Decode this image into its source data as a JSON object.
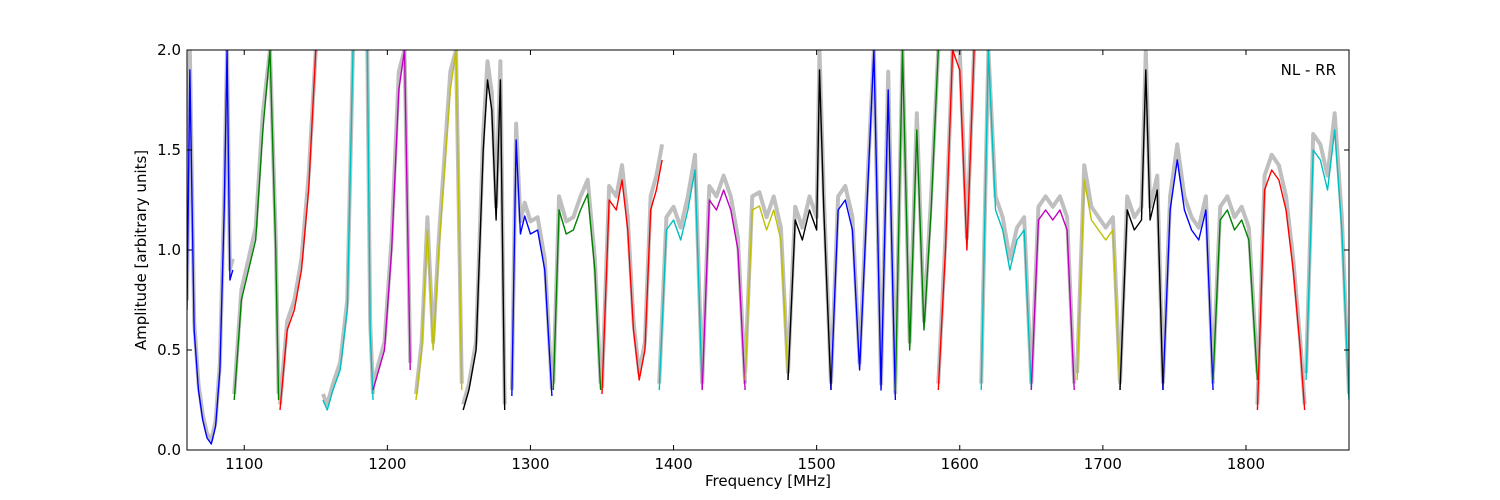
{
  "chart_data": {
    "type": "line",
    "title": "",
    "xlabel": "Frequency [MHz]",
    "ylabel": "Amplitude [arbitrary units]",
    "annotation": "NL - RR",
    "xlim": [
      1060,
      1872
    ],
    "ylim": [
      0.0,
      2.0
    ],
    "x_ticks": [
      1100,
      1200,
      1300,
      1400,
      1500,
      1600,
      1700,
      1800
    ],
    "x_tick_labels": [
      "1100",
      "1200",
      "1300",
      "1400",
      "1500",
      "1600",
      "1700",
      "1800"
    ],
    "y_ticks": [
      0.0,
      0.5,
      1.0,
      1.5,
      2.0
    ],
    "y_tick_labels": [
      "0.0",
      "0.5",
      "1.0",
      "1.5",
      "2.0"
    ],
    "grid": false,
    "background_series": {
      "color": "#bfbfbf",
      "description": "gray envelope"
    },
    "series": [
      {
        "color": "#0000ff",
        "x": [
          1060,
          1062,
          1065,
          1068,
          1071,
          1074,
          1077,
          1080,
          1083,
          1086,
          1088,
          1090,
          1092
        ],
        "y": [
          0.7,
          1.9,
          0.6,
          0.3,
          0.15,
          0.06,
          0.03,
          0.12,
          0.4,
          1.2,
          2.0,
          0.85,
          0.9
        ]
      },
      {
        "color": "#008000",
        "x": [
          1093,
          1098,
          1103,
          1108,
          1113,
          1118,
          1122,
          1124
        ],
        "y": [
          0.25,
          0.75,
          0.9,
          1.05,
          1.6,
          2.0,
          1.0,
          0.25
        ]
      },
      {
        "color": "#ff0000",
        "x": [
          1125,
          1130,
          1135,
          1140,
          1145,
          1150
        ],
        "y": [
          0.2,
          0.6,
          0.7,
          0.9,
          1.3,
          2.0
        ]
      },
      {
        "color": "#00bfbf",
        "x": [
          1155,
          1158,
          1162,
          1167,
          1172,
          1176
        ],
        "y": [
          0.25,
          0.2,
          0.3,
          0.4,
          0.7,
          2.0
        ]
      },
      {
        "color": "#00bfbf",
        "x": [
          1186,
          1188,
          1190
        ],
        "y": [
          2.0,
          0.6,
          0.25
        ]
      },
      {
        "color": "#bf00bf",
        "x": [
          1190,
          1194,
          1198,
          1203,
          1208,
          1212,
          1216
        ],
        "y": [
          0.3,
          0.4,
          0.5,
          1.0,
          1.8,
          2.0,
          0.4
        ]
      },
      {
        "color": "#bfbf00",
        "x": [
          1220,
          1224,
          1228,
          1232,
          1236,
          1240,
          1244,
          1248,
          1252
        ],
        "y": [
          0.25,
          0.5,
          1.1,
          0.5,
          1.0,
          1.4,
          1.8,
          2.0,
          0.3
        ]
      },
      {
        "color": "#000000",
        "x": [
          1253,
          1257,
          1262,
          1267,
          1270,
          1273,
          1276,
          1279,
          1282
        ],
        "y": [
          0.2,
          0.3,
          0.5,
          1.5,
          1.85,
          1.7,
          1.15,
          1.85,
          0.2
        ]
      },
      {
        "color": "#0000ff",
        "x": [
          1287,
          1290,
          1293,
          1296,
          1300,
          1305,
          1310,
          1315
        ],
        "y": [
          0.27,
          1.55,
          1.08,
          1.17,
          1.08,
          1.1,
          0.9,
          0.27
        ]
      },
      {
        "color": "#008000",
        "x": [
          1316,
          1320,
          1325,
          1330,
          1335,
          1340,
          1345,
          1349
        ],
        "y": [
          0.3,
          1.2,
          1.08,
          1.1,
          1.2,
          1.28,
          0.9,
          0.3
        ]
      },
      {
        "color": "#ff0000",
        "x": [
          1350,
          1355,
          1360,
          1364,
          1368,
          1372,
          1376,
          1380,
          1384,
          1388,
          1392
        ],
        "y": [
          0.28,
          1.25,
          1.2,
          1.35,
          1.1,
          0.6,
          0.35,
          0.5,
          1.2,
          1.3,
          1.45
        ]
      },
      {
        "color": "#00bfbf",
        "x": [
          1390,
          1395,
          1400,
          1405,
          1410,
          1415,
          1420
        ],
        "y": [
          0.3,
          1.1,
          1.15,
          1.05,
          1.2,
          1.4,
          0.3
        ]
      },
      {
        "color": "#bf00bf",
        "x": [
          1420,
          1425,
          1430,
          1435,
          1440,
          1445,
          1450
        ],
        "y": [
          0.3,
          1.25,
          1.2,
          1.3,
          1.2,
          1.0,
          0.3
        ]
      },
      {
        "color": "#bfbf00",
        "x": [
          1450,
          1455,
          1460,
          1465,
          1470,
          1475,
          1480
        ],
        "y": [
          0.35,
          1.2,
          1.22,
          1.1,
          1.2,
          1.05,
          0.35
        ]
      },
      {
        "color": "#000000",
        "x": [
          1480,
          1485,
          1490,
          1495,
          1500,
          1502,
          1505,
          1510
        ],
        "y": [
          0.35,
          1.15,
          1.05,
          1.2,
          1.1,
          1.9,
          1.2,
          0.3
        ]
      },
      {
        "color": "#0000ff",
        "x": [
          1510,
          1515,
          1520,
          1525,
          1530,
          1535,
          1540,
          1545,
          1550,
          1555
        ],
        "y": [
          0.3,
          1.2,
          1.25,
          1.1,
          0.4,
          1.2,
          2.0,
          0.3,
          1.8,
          0.25
        ]
      },
      {
        "color": "#008000",
        "x": [
          1555,
          1560,
          1565,
          1570,
          1575,
          1580,
          1585
        ],
        "y": [
          0.3,
          2.0,
          0.5,
          1.6,
          0.6,
          1.2,
          2.0
        ]
      },
      {
        "color": "#ff0000",
        "x": [
          1585,
          1590,
          1595,
          1600,
          1605,
          1610
        ],
        "y": [
          0.3,
          1.0,
          2.0,
          1.9,
          1.0,
          2.0
        ]
      },
      {
        "color": "#00bfbf",
        "x": [
          1615,
          1620,
          1625,
          1630,
          1635,
          1640,
          1645,
          1650
        ],
        "y": [
          0.3,
          2.0,
          1.2,
          1.1,
          0.9,
          1.05,
          1.1,
          0.3
        ]
      },
      {
        "color": "#bf00bf",
        "x": [
          1650,
          1655,
          1660,
          1665,
          1670,
          1675,
          1680
        ],
        "y": [
          0.3,
          1.15,
          1.2,
          1.15,
          1.2,
          1.1,
          0.3
        ]
      },
      {
        "color": "#bfbf00",
        "x": [
          1682,
          1687,
          1692,
          1697,
          1702,
          1707,
          1712
        ],
        "y": [
          0.35,
          1.35,
          1.15,
          1.1,
          1.05,
          1.1,
          0.3
        ]
      },
      {
        "color": "#000000",
        "x": [
          1712,
          1717,
          1722,
          1727,
          1730,
          1733,
          1738,
          1742
        ],
        "y": [
          0.3,
          1.2,
          1.1,
          1.15,
          1.9,
          1.15,
          1.3,
          0.3
        ]
      },
      {
        "color": "#0000ff",
        "x": [
          1742,
          1747,
          1752,
          1757,
          1762,
          1767,
          1772,
          1777
        ],
        "y": [
          0.3,
          1.2,
          1.45,
          1.2,
          1.1,
          1.05,
          1.2,
          0.3
        ]
      },
      {
        "color": "#008000",
        "x": [
          1777,
          1782,
          1787,
          1792,
          1797,
          1802,
          1808
        ],
        "y": [
          0.35,
          1.15,
          1.2,
          1.1,
          1.15,
          1.05,
          0.35
        ]
      },
      {
        "color": "#ff0000",
        "x": [
          1808,
          1813,
          1818,
          1823,
          1828,
          1833,
          1838,
          1841
        ],
        "y": [
          0.2,
          1.3,
          1.4,
          1.35,
          1.2,
          0.9,
          0.5,
          0.2
        ]
      },
      {
        "color": "#00bfbf",
        "x": [
          1842,
          1847,
          1852,
          1857,
          1862,
          1867,
          1872
        ],
        "y": [
          0.35,
          1.5,
          1.45,
          1.3,
          1.6,
          1.1,
          0.25
        ]
      }
    ]
  }
}
